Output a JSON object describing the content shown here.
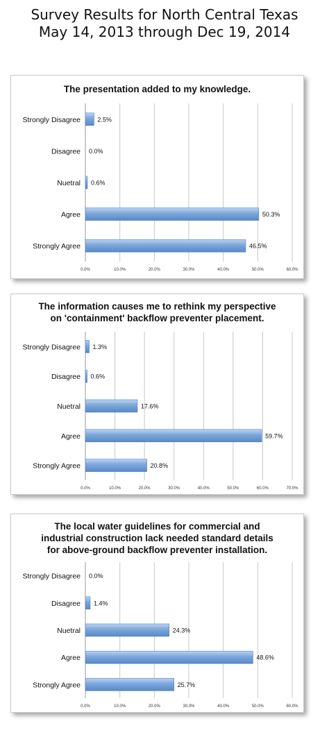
{
  "page": {
    "title_line1": "Survey Results for North Central Texas",
    "title_line2": "May 14, 2013 through Dec 19, 2014"
  },
  "chart_data": [
    {
      "type": "bar",
      "orientation": "horizontal",
      "title": [
        "The presentation added to my knowledge."
      ],
      "categories": [
        "Strongly Disagree",
        "Disagree",
        "Nuetral",
        "Agree",
        "Strongly Agree"
      ],
      "values": [
        2.5,
        0.0,
        0.6,
        50.3,
        46.5
      ],
      "value_labels": [
        "2.5%",
        "0.0%",
        "0.6%",
        "50.3%",
        "46.5%"
      ],
      "xlim": [
        0,
        60
      ],
      "xticks": [
        "0.0%",
        "10.0%",
        "20.0%",
        "30.0%",
        "40.0%",
        "50.0%",
        "60.0%"
      ],
      "grid": true,
      "bar_color": "#7aa6dc"
    },
    {
      "type": "bar",
      "orientation": "horizontal",
      "title": [
        "The information causes me to rethink my perspective",
        "on 'containment' backflow preventer placement."
      ],
      "categories": [
        "Strongly Disagree",
        "Disagree",
        "Nuetral",
        "Agree",
        "Strongly Agree"
      ],
      "values": [
        1.3,
        0.6,
        17.6,
        59.7,
        20.8
      ],
      "value_labels": [
        "1.3%",
        "0.6%",
        "17.6%",
        "59.7%",
        "20.8%"
      ],
      "xlim": [
        0,
        70
      ],
      "xticks": [
        "0.0%",
        "10.0%",
        "20.0%",
        "30.0%",
        "40.0%",
        "50.0%",
        "60.0%",
        "70.0%"
      ],
      "grid": true,
      "bar_color": "#7aa6dc"
    },
    {
      "type": "bar",
      "orientation": "horizontal",
      "title": [
        "The local water guidelines for commercial and",
        "industrial construction lack needed standard details",
        "for above-ground backflow preventer installation."
      ],
      "categories": [
        "Strongly Disagree",
        "Disagree",
        "Nuetral",
        "Agree",
        "Strongly Agree"
      ],
      "values": [
        0.0,
        1.4,
        24.3,
        48.6,
        25.7
      ],
      "value_labels": [
        "0.0%",
        "1.4%",
        "24.3%",
        "48.6%",
        "25.7%"
      ],
      "xlim": [
        0,
        60
      ],
      "xticks": [
        "0.0%",
        "10.0%",
        "20.0%",
        "30.0%",
        "40.0%",
        "50.0%",
        "60.0%"
      ],
      "grid": true,
      "bar_color": "#7aa6dc"
    }
  ]
}
